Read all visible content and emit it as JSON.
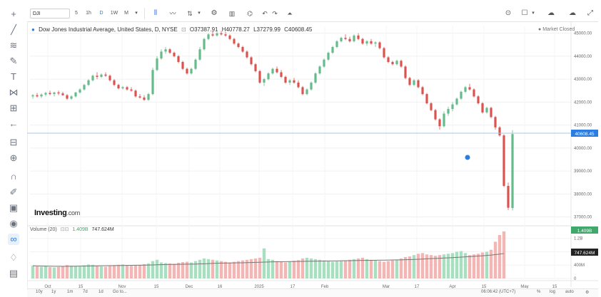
{
  "toolbar": {
    "symbol": "DJI",
    "intervals": [
      "5",
      "1h",
      "D",
      "1W",
      "M"
    ],
    "right_buttons": [
      "camera",
      "fullscreen-box",
      "cloud-down",
      "cloud-up",
      "expand"
    ]
  },
  "legend": {
    "title": "Dow Jones Industrial Average, United States, D, NYSE",
    "open": "O37387.91",
    "high": "H40778.27",
    "low": "L37279.99",
    "close": "C40608.45",
    "market_status": "Market Closed"
  },
  "price_axis": {
    "ticks": [
      "45000.00",
      "44000.00",
      "43000.00",
      "42000.00",
      "41000.00",
      "40000.00",
      "39000.00",
      "38000.00",
      "37000.00"
    ],
    "last_price": "40608.45"
  },
  "volume_legend": {
    "label": "Volume (20)",
    "value1": "1.409B",
    "value2": "747.624M"
  },
  "volume_axis": {
    "ticks": [
      "1.2B",
      "800M",
      "400M",
      "0"
    ],
    "last_volume": "1.409B",
    "last_ma": "747.624M"
  },
  "time_axis": {
    "labels": [
      "Oct",
      "15",
      "Nov",
      "15",
      "Dec",
      "16",
      "2025",
      "17",
      "Feb",
      "Mar",
      "17",
      "Apr",
      "15",
      "May",
      "15"
    ]
  },
  "logo": {
    "brand": "Investing",
    "suffix": ".com"
  },
  "bottom": {
    "ranges": [
      "10y",
      "1y",
      "1m",
      "7d",
      "1d",
      "Go to..."
    ],
    "clock": "06:06:42 (UTC+7)",
    "options": [
      "%",
      "log",
      "auto"
    ]
  },
  "colors": {
    "up": "#66bb8a",
    "down": "#d9534f",
    "up_vol": "#a7dfc0",
    "down_vol": "#f2b6b4",
    "accent": "#2b7de1"
  },
  "chart_data": {
    "type": "candlestick",
    "title": "Dow Jones Industrial Average, United States, D, NYSE",
    "ylim": [
      36800,
      45300
    ],
    "ohlc": [
      [
        42250,
        42350,
        42150,
        42300
      ],
      [
        42300,
        42400,
        42200,
        42250
      ],
      [
        42250,
        42380,
        42180,
        42330
      ],
      [
        42330,
        42450,
        42250,
        42400
      ],
      [
        42400,
        42500,
        42300,
        42350
      ],
      [
        42350,
        42450,
        42250,
        42420
      ],
      [
        42420,
        42500,
        42300,
        42380
      ],
      [
        42380,
        42450,
        42280,
        42300
      ],
      [
        42300,
        42350,
        42100,
        42150
      ],
      [
        42150,
        42300,
        42100,
        42250
      ],
      [
        42250,
        42450,
        42200,
        42420
      ],
      [
        42420,
        42600,
        42380,
        42550
      ],
      [
        42550,
        42800,
        42500,
        42750
      ],
      [
        42750,
        43000,
        42700,
        42950
      ],
      [
        42950,
        43200,
        42900,
        43150
      ],
      [
        43150,
        43300,
        43000,
        43100
      ],
      [
        43100,
        43250,
        43050,
        43200
      ],
      [
        43200,
        43300,
        43100,
        43150
      ],
      [
        43150,
        43200,
        42900,
        42950
      ],
      [
        42950,
        43000,
        42700,
        42750
      ],
      [
        42750,
        42800,
        42550,
        42600
      ],
      [
        42600,
        42700,
        42550,
        42650
      ],
      [
        42650,
        42700,
        42500,
        42550
      ],
      [
        42550,
        42650,
        42450,
        42500
      ],
      [
        42500,
        42550,
        42200,
        42250
      ],
      [
        42250,
        42350,
        42150,
        42200
      ],
      [
        42200,
        42300,
        42050,
        42100
      ],
      [
        42100,
        42400,
        42050,
        42350
      ],
      [
        42350,
        43500,
        42300,
        43400
      ],
      [
        43400,
        44000,
        43350,
        43900
      ],
      [
        43900,
        44300,
        43850,
        44200
      ],
      [
        44200,
        44400,
        44100,
        44300
      ],
      [
        44300,
        44350,
        44100,
        44150
      ],
      [
        44150,
        44200,
        43950,
        44000
      ],
      [
        44000,
        44050,
        43700,
        43750
      ],
      [
        43750,
        43800,
        43400,
        43450
      ],
      [
        43450,
        43500,
        43200,
        43250
      ],
      [
        43250,
        43500,
        43200,
        43450
      ],
      [
        43450,
        43900,
        43400,
        43850
      ],
      [
        43850,
        44400,
        43800,
        44300
      ],
      [
        44300,
        44800,
        44250,
        44750
      ],
      [
        44750,
        45000,
        44700,
        44950
      ],
      [
        44950,
        45100,
        44850,
        44900
      ],
      [
        44900,
        45050,
        44850,
        45000
      ],
      [
        45000,
        45100,
        44900,
        44950
      ],
      [
        44950,
        45050,
        44850,
        44900
      ],
      [
        44900,
        44950,
        44700,
        44750
      ],
      [
        44750,
        44800,
        44500,
        44550
      ],
      [
        44550,
        44600,
        44350,
        44400
      ],
      [
        44400,
        44450,
        44150,
        44200
      ],
      [
        44200,
        44250,
        43900,
        43950
      ],
      [
        43950,
        44000,
        43600,
        43650
      ],
      [
        43650,
        43700,
        43300,
        43350
      ],
      [
        43350,
        43400,
        42800,
        42850
      ],
      [
        42850,
        43050,
        42700,
        43000
      ],
      [
        43000,
        43300,
        42950,
        43250
      ],
      [
        43250,
        43500,
        43200,
        43450
      ],
      [
        43450,
        43550,
        43250,
        43300
      ],
      [
        43300,
        43400,
        43050,
        43100
      ],
      [
        43100,
        43150,
        42800,
        42850
      ],
      [
        42850,
        43000,
        42750,
        42950
      ],
      [
        42950,
        43050,
        42800,
        42850
      ],
      [
        42850,
        42950,
        42600,
        42650
      ],
      [
        42650,
        42700,
        42300,
        42350
      ],
      [
        42350,
        42600,
        42300,
        42550
      ],
      [
        42550,
        42900,
        42500,
        42850
      ],
      [
        42850,
        43300,
        42800,
        43250
      ],
      [
        43250,
        43600,
        43200,
        43550
      ],
      [
        43550,
        43900,
        43500,
        43850
      ],
      [
        43850,
        44200,
        43800,
        44150
      ],
      [
        44150,
        44450,
        44100,
        44400
      ],
      [
        44400,
        44700,
        44350,
        44650
      ],
      [
        44650,
        44850,
        44600,
        44800
      ],
      [
        44800,
        44950,
        44700,
        44750
      ],
      [
        44750,
        44850,
        44600,
        44650
      ],
      [
        44650,
        44950,
        44600,
        44900
      ],
      [
        44900,
        45000,
        44700,
        44750
      ],
      [
        44750,
        44800,
        44500,
        44550
      ],
      [
        44550,
        44700,
        44450,
        44650
      ],
      [
        44650,
        44750,
        44500,
        44550
      ],
      [
        44550,
        44650,
        44400,
        44600
      ],
      [
        44600,
        44650,
        44300,
        44350
      ],
      [
        44350,
        44400,
        43900,
        43950
      ],
      [
        43950,
        44000,
        43700,
        43750
      ],
      [
        43750,
        43800,
        43600,
        43650
      ],
      [
        43650,
        43850,
        43600,
        43800
      ],
      [
        43800,
        43850,
        43500,
        43550
      ],
      [
        43550,
        43600,
        43000,
        43050
      ],
      [
        43050,
        43100,
        42700,
        42750
      ],
      [
        42750,
        43000,
        42700,
        42950
      ],
      [
        42950,
        43000,
        42600,
        42650
      ],
      [
        42650,
        42700,
        42300,
        42350
      ],
      [
        42350,
        42400,
        41900,
        41950
      ],
      [
        41950,
        42000,
        41600,
        41650
      ],
      [
        41650,
        41700,
        41200,
        41250
      ],
      [
        41250,
        41300,
        40800,
        40950
      ],
      [
        40950,
        41600,
        40900,
        41500
      ],
      [
        41500,
        41800,
        41400,
        41700
      ],
      [
        41700,
        42000,
        41600,
        41900
      ],
      [
        41900,
        42200,
        41850,
        42150
      ],
      [
        42150,
        42500,
        42100,
        42450
      ],
      [
        42450,
        42700,
        42400,
        42650
      ],
      [
        42650,
        42800,
        42500,
        42550
      ],
      [
        42550,
        42600,
        42200,
        42250
      ],
      [
        42250,
        42300,
        41900,
        41950
      ],
      [
        41950,
        42000,
        41500,
        41550
      ],
      [
        41550,
        41800,
        41500,
        41750
      ],
      [
        41750,
        41800,
        41300,
        41350
      ],
      [
        41350,
        41400,
        40800,
        40900
      ],
      [
        40900,
        40950,
        40500,
        40550
      ],
      [
        40550,
        40600,
        38300,
        38350
      ],
      [
        38350,
        38500,
        37300,
        37400
      ],
      [
        37387.91,
        40778.27,
        37279.99,
        40608.45
      ]
    ],
    "volume": [
      380,
      360,
      350,
      370,
      340,
      330,
      345,
      360,
      400,
      380,
      370,
      360,
      390,
      420,
      410,
      380,
      360,
      350,
      370,
      390,
      410,
      420,
      400,
      380,
      395,
      410,
      430,
      450,
      520,
      560,
      480,
      460,
      450,
      440,
      470,
      490,
      500,
      480,
      520,
      560,
      600,
      580,
      560,
      540,
      520,
      500,
      480,
      500,
      520,
      540,
      560,
      580,
      600,
      620,
      900,
      580,
      560,
      520,
      500,
      480,
      510,
      530,
      550,
      600,
      620,
      600,
      580,
      560,
      540,
      520,
      500,
      510,
      520,
      540,
      560,
      580,
      600,
      620,
      580,
      560,
      540,
      520,
      500,
      520,
      540,
      560,
      600,
      640,
      660,
      700,
      740,
      760,
      720,
      700,
      680,
      700,
      720,
      740,
      760,
      800,
      820,
      760,
      700,
      720,
      740,
      780,
      800,
      860,
      1100,
      1300,
      1409
    ],
    "volume_ma": [
      380,
      375,
      372,
      370,
      368,
      366,
      364,
      363,
      364,
      366,
      368,
      370,
      372,
      374,
      376,
      378,
      380,
      382,
      384,
      386,
      388,
      390,
      392,
      394,
      396,
      398,
      400,
      402,
      405,
      410,
      414,
      418,
      420,
      422,
      424,
      426,
      428,
      430,
      432,
      436,
      440,
      446,
      452,
      456,
      460,
      462,
      464,
      466,
      468,
      470,
      474,
      478,
      482,
      486,
      490,
      494,
      498,
      500,
      502,
      504,
      506,
      508,
      510,
      512,
      514,
      516,
      518,
      520,
      522,
      524,
      526,
      528,
      530,
      532,
      534,
      536,
      538,
      540,
      542,
      544,
      546,
      548,
      550,
      552,
      554,
      556,
      558,
      562,
      566,
      570,
      576,
      582,
      588,
      594,
      600,
      606,
      612,
      618,
      624,
      632,
      640,
      648,
      656,
      664,
      672,
      680,
      690,
      700,
      715,
      730,
      747.624
    ]
  }
}
